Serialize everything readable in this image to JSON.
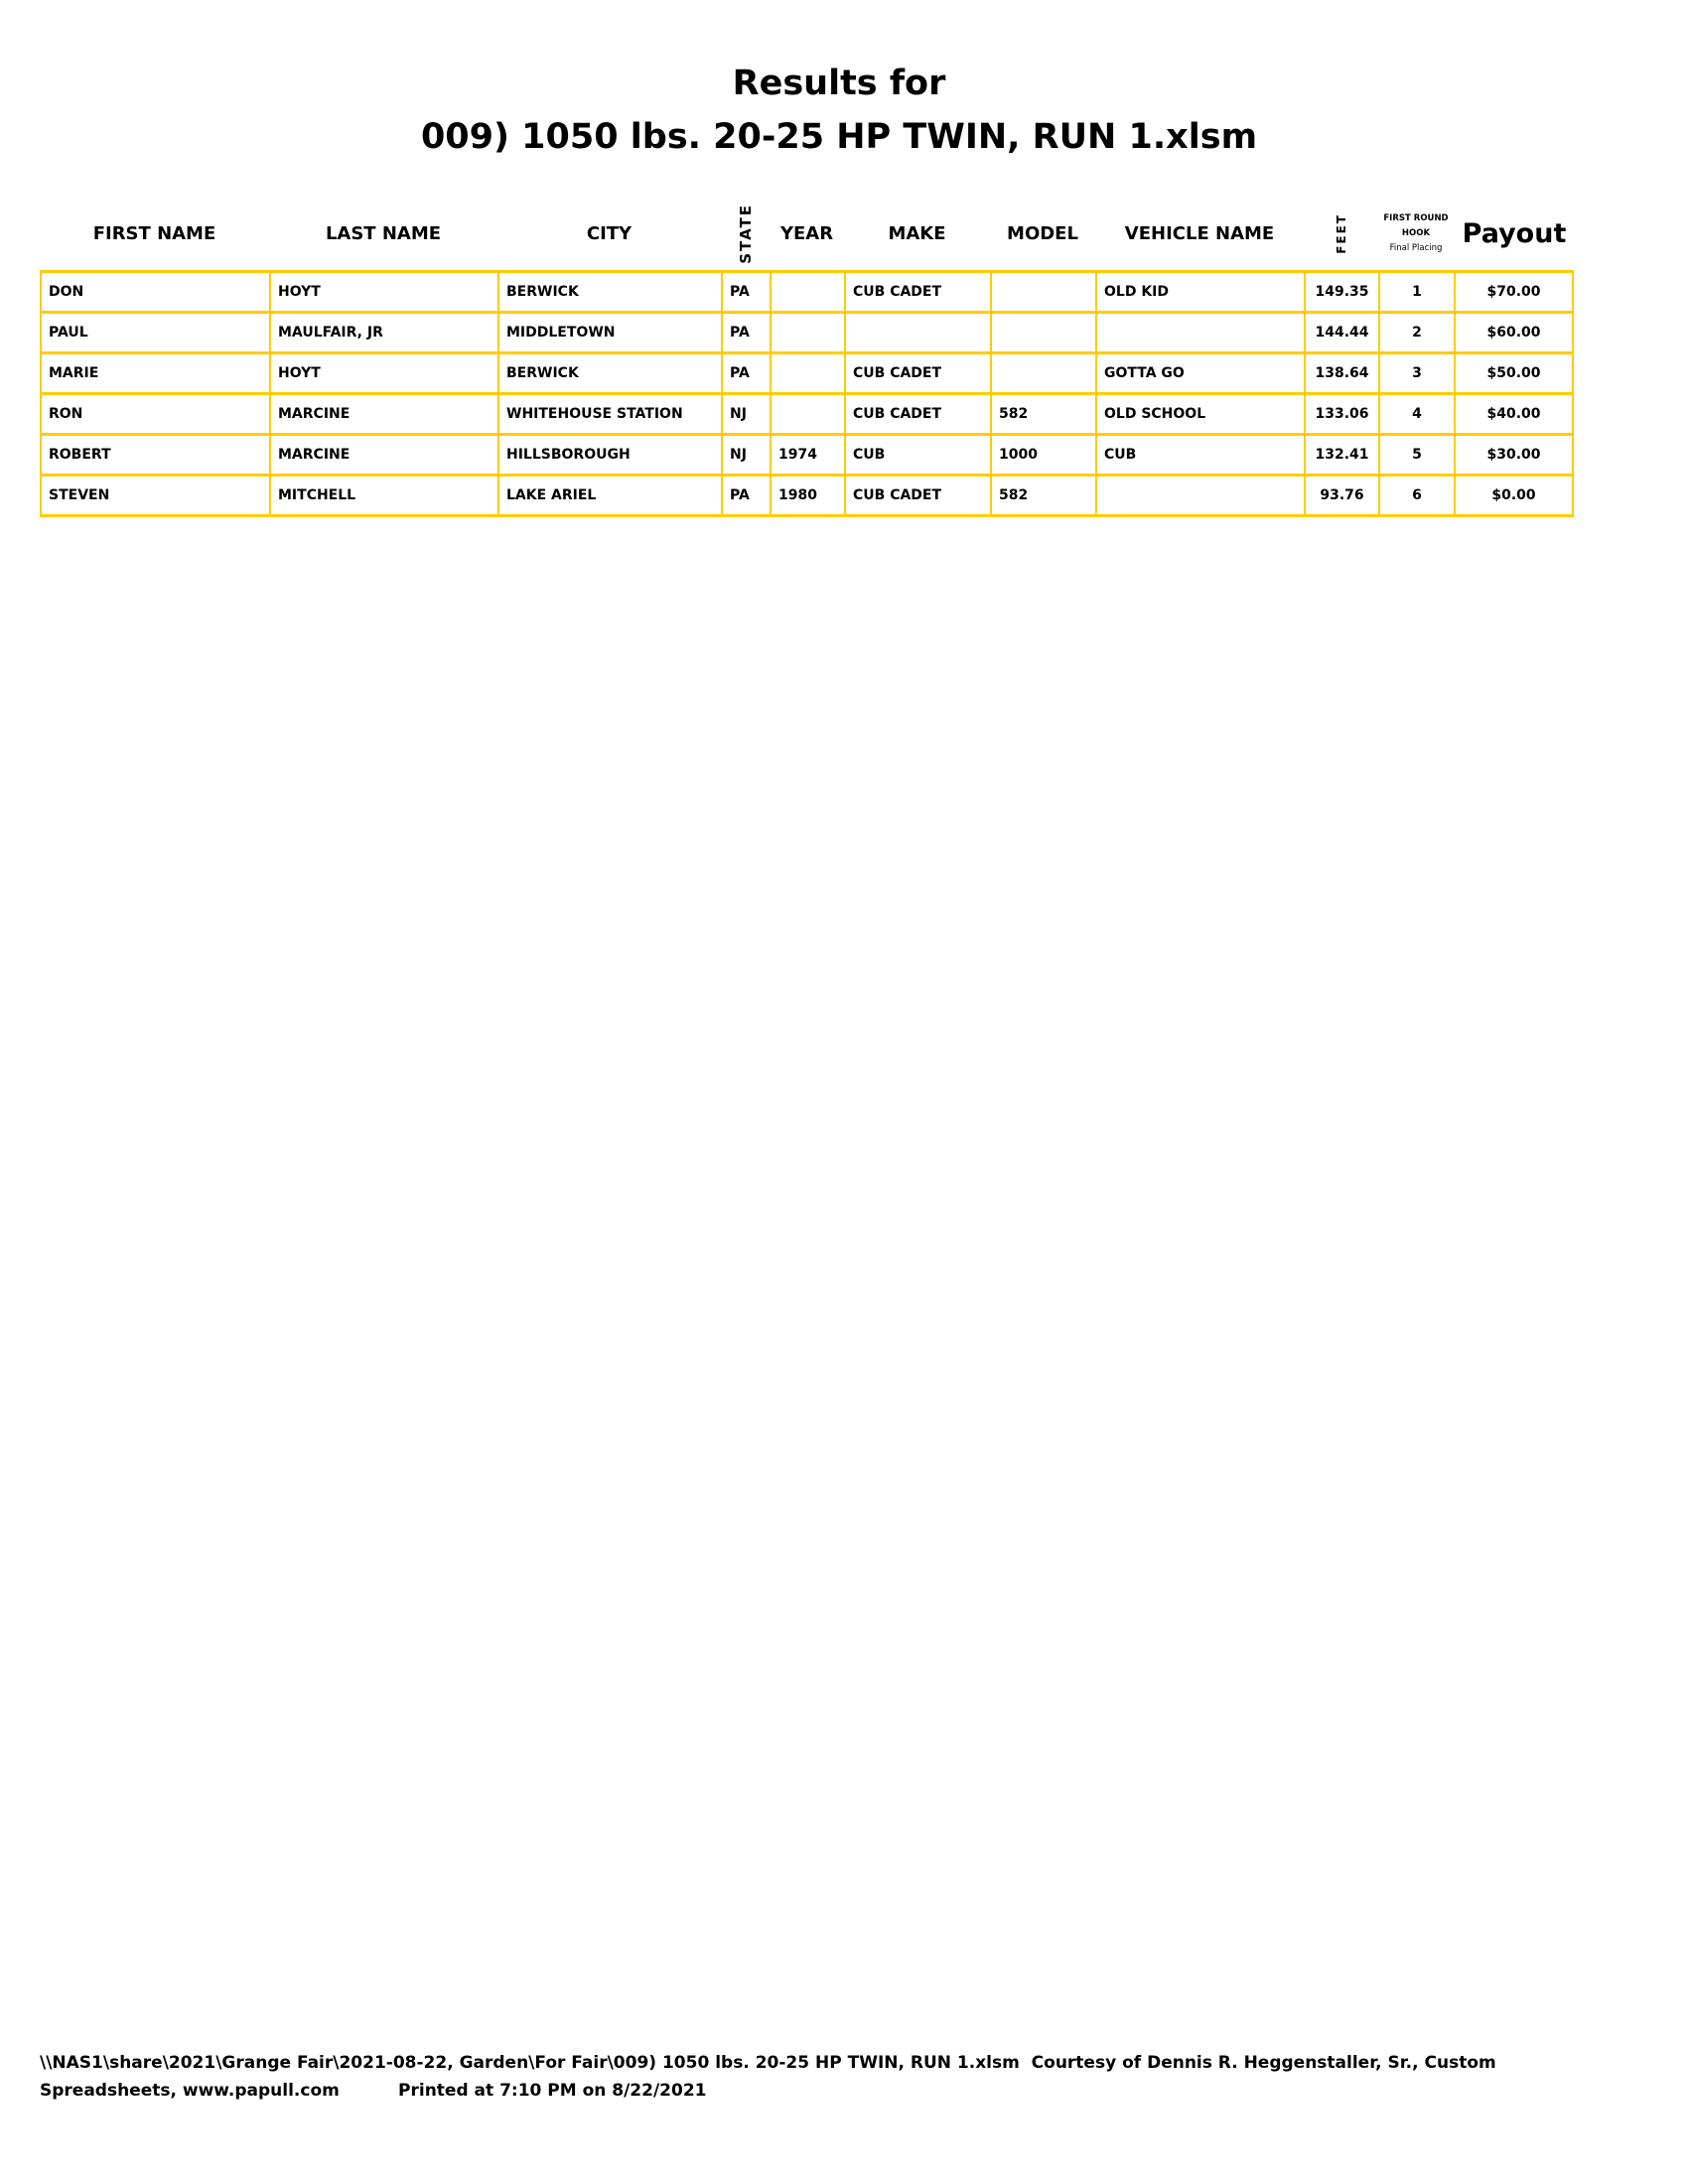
{
  "title_line1": "Results for",
  "title_line2": "009) 1050 lbs. 20-25 HP TWIN, RUN 1.xlsm",
  "headers": {
    "first": "FIRST NAME",
    "last": "LAST NAME",
    "city": "CITY",
    "state": "STATE",
    "year": "YEAR",
    "make": "MAKE",
    "model": "MODEL",
    "vehicle": "VEHICLE NAME",
    "feet": "FEET",
    "hook1": "FIRST ROUND",
    "hook2": "HOOK",
    "hook3": "Final Placing",
    "payout": "Payout"
  },
  "rows": [
    [
      "DON",
      "HOYT",
      "BERWICK",
      "PA",
      "",
      "CUB CADET",
      "",
      "OLD KID",
      "149.35",
      "1",
      "$70.00"
    ],
    [
      "PAUL",
      "MAULFAIR, JR",
      "MIDDLETOWN",
      "PA",
      "",
      "",
      "",
      "",
      "144.44",
      "2",
      "$60.00"
    ],
    [
      "MARIE",
      "HOYT",
      "BERWICK",
      "PA",
      "",
      "CUB CADET",
      "",
      "GOTTA GO",
      "138.64",
      "3",
      "$50.00"
    ],
    [
      "RON",
      "MARCINE",
      "WHITEHOUSE STATION",
      "NJ",
      "",
      "CUB CADET",
      "582",
      "OLD SCHOOL",
      "133.06",
      "4",
      "$40.00"
    ],
    [
      "ROBERT",
      "MARCINE",
      "HILLSBOROUGH",
      "NJ",
      "1974",
      "CUB",
      "1000",
      "CUB",
      "132.41",
      "5",
      "$30.00"
    ],
    [
      "STEVEN",
      "MITCHELL",
      "LAKE ARIEL",
      "PA",
      "1980",
      "CUB CADET",
      "582",
      "",
      "93.76",
      "6",
      "$0.00"
    ]
  ],
  "footer_line1": "\\\\NAS1\\share\\2021\\Grange Fair\\2021-08-22, Garden\\For Fair\\009) 1050 lbs. 20-25 HP TWIN, RUN 1.xlsm  Courtesy of Dennis R. Heggenstaller, Sr., Custom",
  "footer_line2": "Spreadsheets, www.papull.com          Printed at 7:10 PM on 8/22/2021",
  "colors": {
    "border": "#ffcc00"
  }
}
